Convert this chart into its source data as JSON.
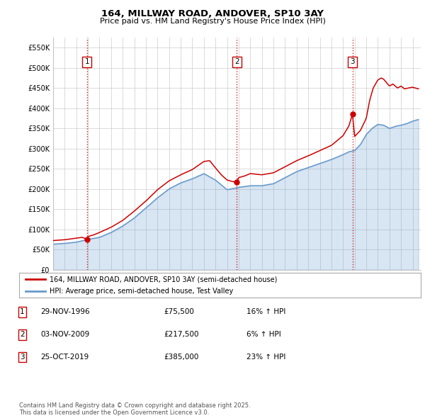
{
  "title": "164, MILLWAY ROAD, ANDOVER, SP10 3AY",
  "subtitle": "Price paid vs. HM Land Registry's House Price Index (HPI)",
  "red_label": "164, MILLWAY ROAD, ANDOVER, SP10 3AY (semi-detached house)",
  "blue_label": "HPI: Average price, semi-detached house, Test Valley",
  "ylim": [
    0,
    575000
  ],
  "yticks": [
    0,
    50000,
    100000,
    150000,
    200000,
    250000,
    300000,
    350000,
    400000,
    450000,
    500000,
    550000
  ],
  "ytick_labels": [
    "£0",
    "£50K",
    "£100K",
    "£150K",
    "£200K",
    "£250K",
    "£300K",
    "£350K",
    "£400K",
    "£450K",
    "£500K",
    "£550K"
  ],
  "x_start_year": 1994,
  "x_end_year": 2025,
  "sale_events": [
    {
      "num": 1,
      "year": 1996.91,
      "price": 75500,
      "date": "29-NOV-1996",
      "pct": "16%",
      "direction": "↑"
    },
    {
      "num": 2,
      "year": 2009.84,
      "price": 217500,
      "date": "03-NOV-2009",
      "pct": "6%",
      "direction": "↑"
    },
    {
      "num": 3,
      "year": 2019.81,
      "price": 385000,
      "date": "25-OCT-2019",
      "pct": "23%",
      "direction": "↑"
    }
  ],
  "red_color": "#cc0000",
  "blue_color": "#6699cc",
  "background_color": "#ffffff",
  "grid_color": "#cccccc",
  "footnote": "Contains HM Land Registry data © Crown copyright and database right 2025.\nThis data is licensed under the Open Government Licence v3.0."
}
